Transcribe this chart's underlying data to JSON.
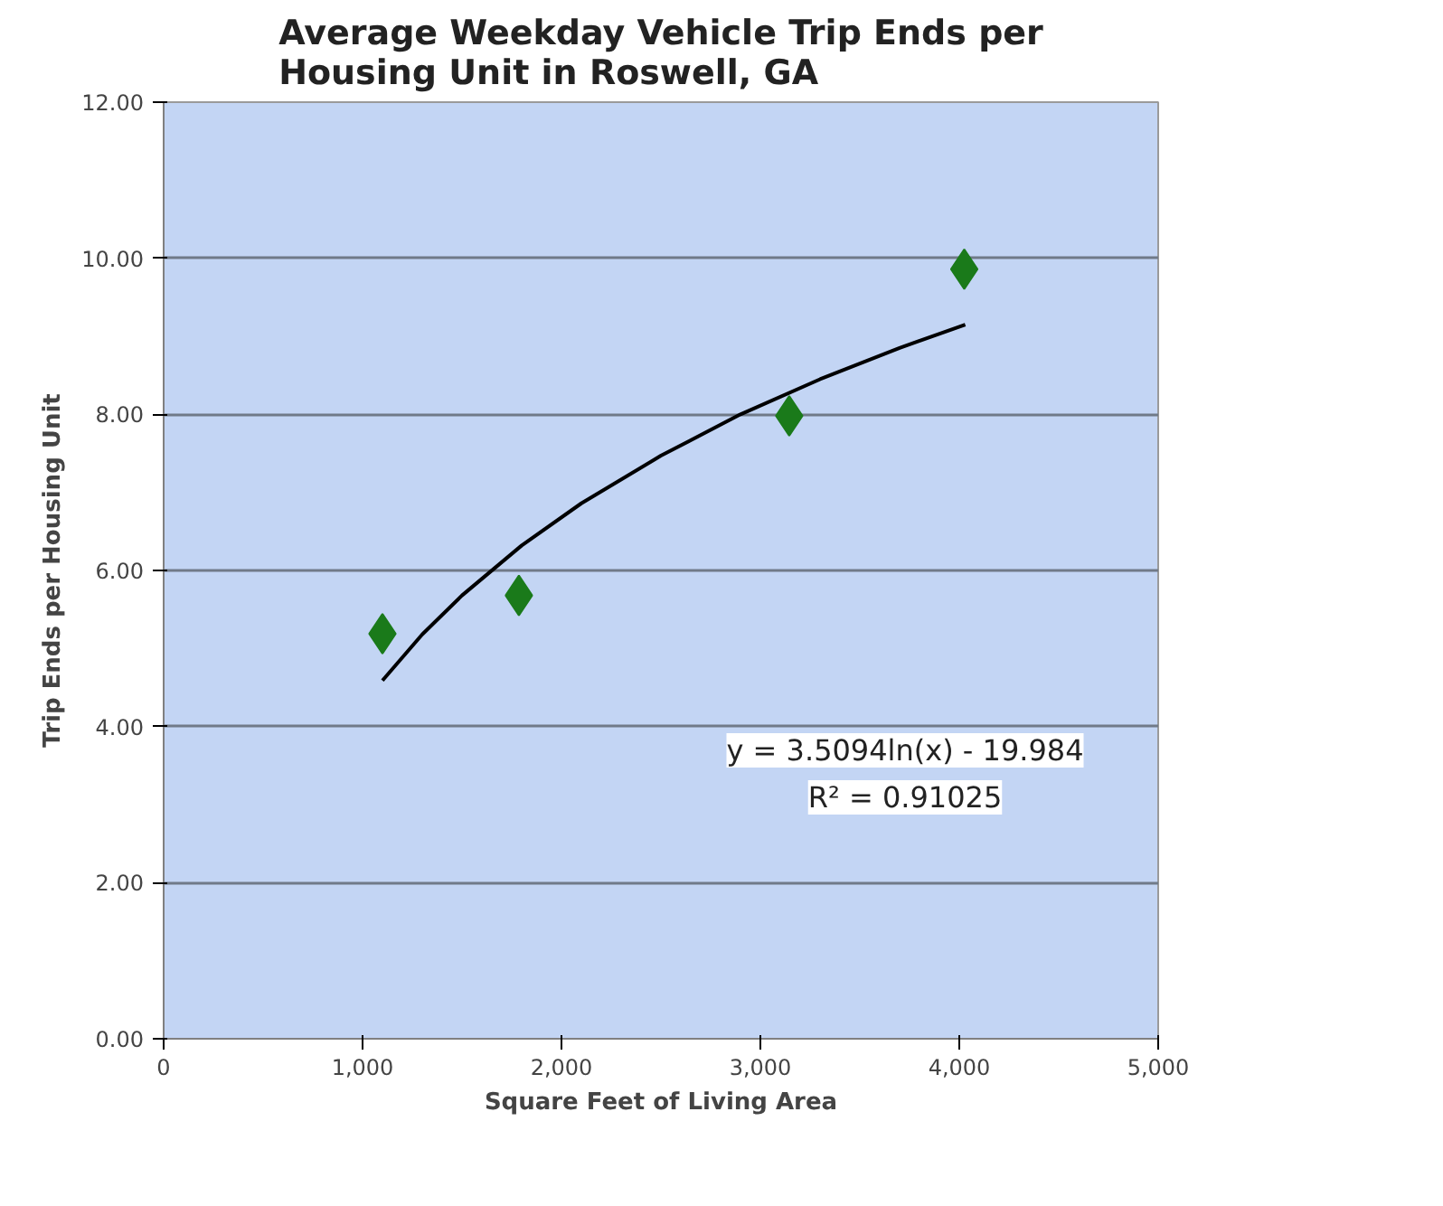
{
  "chart_data": {
    "type": "scatter",
    "title": "Average Weekday Vehicle Trip Ends per\nHousing Unit in Roswell, GA",
    "xlabel": "Square Feet of Living Area",
    "ylabel": "Trip Ends per Housing Unit",
    "x": [
      1100,
      1786,
      3145,
      4025
    ],
    "series": [
      {
        "color": "#1a7a1a",
        "marker": "diamond",
        "values": [
          5.19,
          5.68,
          7.98,
          9.86
        ]
      },
      {
        "type": "line",
        "color": "#000000",
        "marker": "none",
        "x": [
          1100,
          1300,
          1500,
          1800,
          2100,
          2500,
          2900,
          3300,
          3700,
          4030
        ],
        "values": [
          4.59,
          5.18,
          5.68,
          6.32,
          6.86,
          7.47,
          8.0,
          8.45,
          8.85,
          9.15
        ]
      }
    ],
    "xlim": [
      0,
      5000
    ],
    "xticks": [
      0,
      {
        "value": 1000,
        "label": "1,000"
      },
      {
        "value": 2000,
        "label": "2,000"
      },
      {
        "value": 3000,
        "label": "3,000"
      },
      {
        "value": 4000,
        "label": "4,000"
      },
      {
        "value": 5000,
        "label": "5,000"
      }
    ],
    "ylim": [
      0,
      12
    ],
    "yticks": [
      {
        "value": 0,
        "label": "0.00"
      },
      {
        "value": 2,
        "label": "2.00"
      },
      {
        "value": 4,
        "label": "4.00"
      },
      {
        "value": 6,
        "label": "6.00"
      },
      {
        "value": 8,
        "label": "8.00"
      },
      {
        "value": 10,
        "label": "10.00"
      },
      {
        "value": 12,
        "label": "12.00"
      }
    ],
    "grid": "y",
    "annotations": [
      "y = 3.5094ln(x) - 19.984",
      "R² = 0.91025"
    ]
  }
}
